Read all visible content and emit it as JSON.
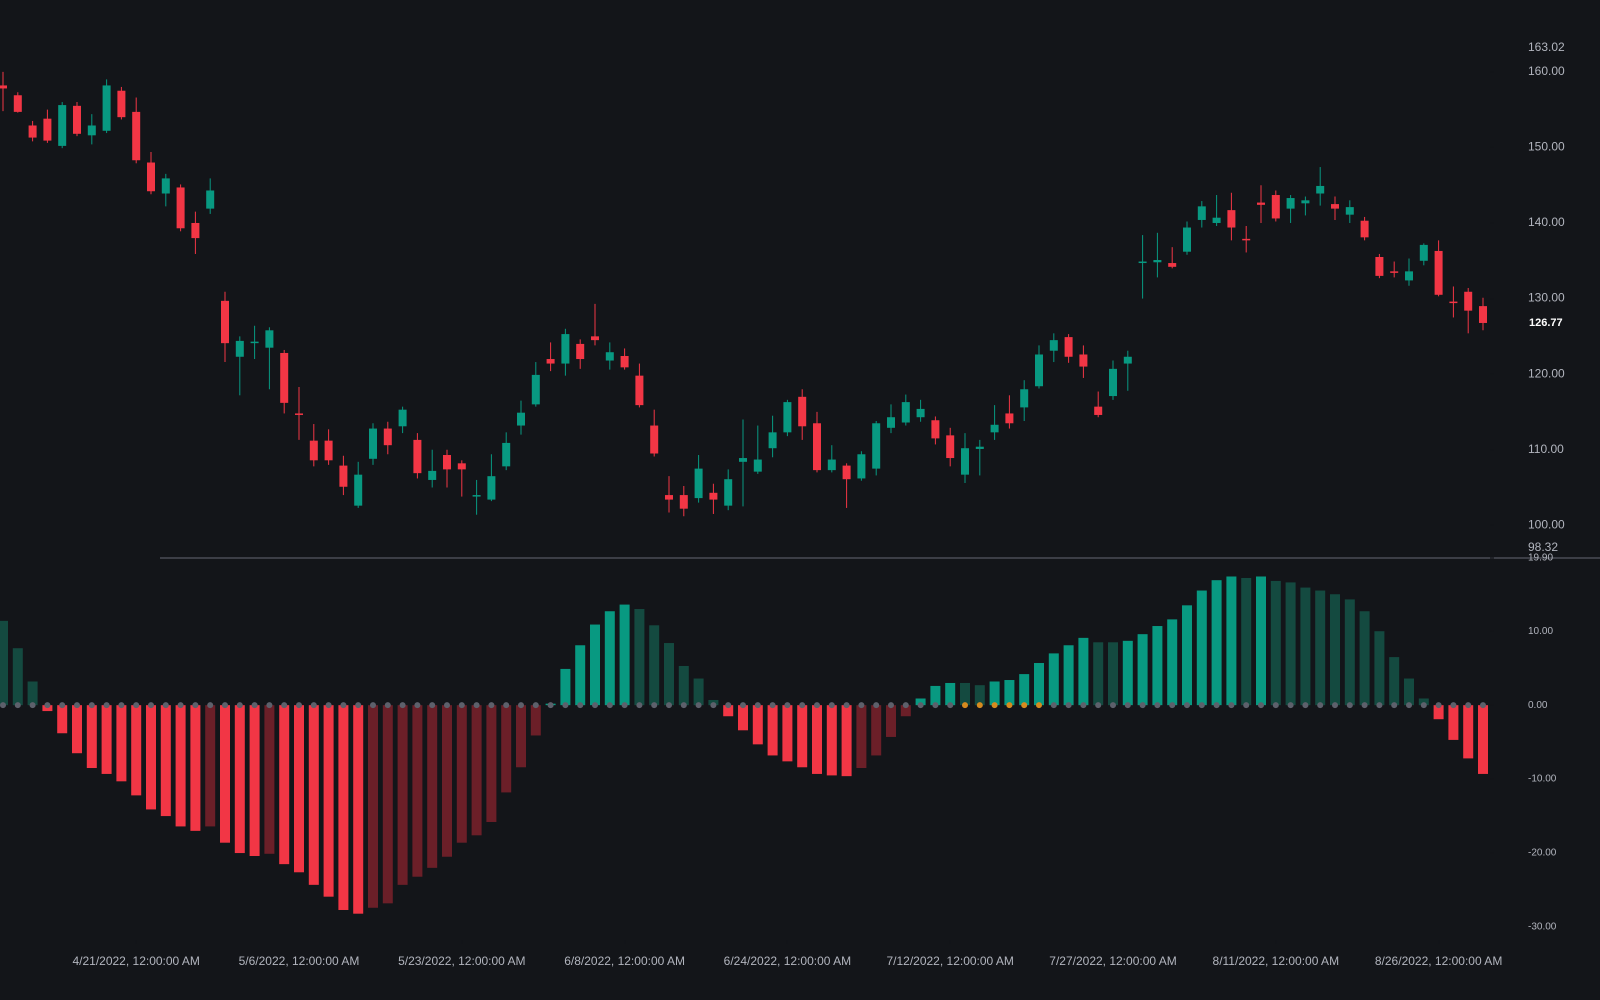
{
  "chart_data": [
    {
      "type": "candlestick",
      "open": [
        158.2,
        156.9,
        152.9,
        153.8,
        150.2,
        155.5,
        151.6,
        152.2,
        157.5,
        154.7,
        148,
        143.9,
        144.7,
        140,
        141.9,
        129.7,
        122.3,
        124.1,
        123.5,
        122.8,
        114.8,
        111.2,
        111.2,
        107.9,
        102.6,
        108.8,
        112.8,
        113.1,
        111.3,
        106,
        109.3,
        108.2,
        103.8,
        103.4,
        107.8,
        113.2,
        116,
        122,
        121.4,
        124,
        125,
        121.8,
        122.4,
        119.8,
        113.2,
        104,
        104,
        103.6,
        104.3,
        102.6,
        108.4,
        107.1,
        110.2,
        112.3,
        117,
        113.5,
        107.3,
        107.9,
        106.2,
        107.5,
        112.9,
        113.6,
        114.3,
        113.9,
        111.9,
        106.7,
        110.1,
        112.3,
        114.8,
        115.6,
        118.4,
        123.1,
        124.9,
        122.6,
        115.7,
        117.1,
        121.4,
        134.7,
        134.8,
        134.7,
        136.2,
        140.4,
        140,
        141.7,
        137.9,
        142.7,
        143.7,
        141.9,
        142.6,
        143.9,
        142.5,
        141.1,
        140.3,
        135.5,
        133.6,
        132.4,
        135,
        136.3,
        129.6,
        130.9,
        129
      ],
      "high": [
        160,
        157.3,
        153.5,
        155,
        156,
        156,
        154.4,
        159,
        158,
        156.6,
        149.4,
        146.5,
        145.1,
        141.5,
        145.9,
        130.9,
        125,
        126.4,
        126.2,
        123.2,
        118.3,
        113.4,
        112.7,
        109.2,
        108.4,
        113.5,
        113.7,
        115.7,
        112.2,
        110,
        110,
        108.6,
        106,
        109.4,
        112.3,
        116.5,
        121.6,
        124.2,
        126,
        124.6,
        129.3,
        124.2,
        123.4,
        121.4,
        115.3,
        106.5,
        105.2,
        109.3,
        105.5,
        107.4,
        114,
        113.2,
        114.5,
        116.6,
        118,
        115,
        110.6,
        108.2,
        109.8,
        113.8,
        116,
        117.3,
        116.6,
        114.4,
        112.9,
        112.2,
        111.3,
        115.9,
        117.2,
        119.2,
        123.8,
        125.4,
        125.3,
        123.8,
        117.7,
        121.8,
        123.1,
        138.4,
        138.7,
        136.8,
        140.2,
        142.9,
        143.7,
        144,
        139.6,
        145,
        144.3,
        143.7,
        143.5,
        147.4,
        143.5,
        143,
        140.8,
        135.9,
        134.9,
        135.3,
        137.3,
        137.7,
        131.6,
        131.4,
        130.1
      ],
      "low": [
        154.8,
        154.6,
        150.8,
        150.6,
        149.9,
        151.5,
        150.4,
        151.9,
        153.7,
        147.9,
        143.8,
        142.2,
        138.9,
        135.9,
        141.2,
        121.6,
        117.2,
        122,
        118,
        114.8,
        111.3,
        107.8,
        108,
        104,
        102.3,
        108,
        109.4,
        112.2,
        106.2,
        105,
        105,
        103.8,
        101.4,
        103.2,
        107.3,
        112,
        115.7,
        120.4,
        119.8,
        120.7,
        123.8,
        120.6,
        120.6,
        115.6,
        109.1,
        101.7,
        101.2,
        103,
        101.5,
        102,
        102.5,
        106.8,
        109,
        111.8,
        111.3,
        107,
        107,
        102.3,
        105.9,
        106.6,
        112.2,
        113.2,
        113.7,
        110.7,
        107.8,
        105.6,
        106.6,
        111.3,
        112.8,
        113.8,
        118.1,
        121.6,
        121.5,
        119.5,
        114.3,
        116.6,
        117.8,
        130,
        132.8,
        134,
        135.8,
        139.4,
        139.6,
        137.7,
        136.1,
        140,
        140.2,
        140,
        141,
        142.3,
        140.4,
        140,
        137.7,
        132.7,
        132.8,
        131.7,
        134.4,
        130.3,
        127.5,
        125.4,
        125.8
      ],
      "close": [
        157.8,
        154.7,
        151.3,
        150.9,
        155.6,
        151.8,
        152.9,
        158.2,
        154,
        148.3,
        144.2,
        145.9,
        139.3,
        138,
        144.3,
        124.1,
        124.4,
        124.3,
        125.8,
        116.2,
        114.6,
        108.6,
        108.6,
        105.1,
        106.7,
        112.8,
        110.6,
        115.3,
        106.9,
        107.2,
        107.4,
        107.4,
        104,
        106.5,
        110.9,
        114.9,
        119.9,
        121.4,
        125.3,
        122,
        124.5,
        122.9,
        120.9,
        115.9,
        109.5,
        103.4,
        102.2,
        107.5,
        103.4,
        106.1,
        108.9,
        108.7,
        112.3,
        116.3,
        113.1,
        107.3,
        108.7,
        106.1,
        109.4,
        113.5,
        114.3,
        116.3,
        115.4,
        111.5,
        108.9,
        110.2,
        110.4,
        113.3,
        113.5,
        118,
        122.6,
        124.5,
        122.3,
        121,
        114.6,
        120.7,
        122.3,
        134.9,
        135.1,
        134.2,
        139.4,
        142.2,
        140.7,
        139.4,
        137.7,
        142.4,
        140.6,
        143.3,
        143,
        144.9,
        141.9,
        142.1,
        138.1,
        133,
        133.4,
        133.6,
        137.1,
        130.5,
        129.4,
        128.4,
        126.77
      ],
      "colors": {
        "up": "#089981",
        "down": "#f23645"
      },
      "ylim": [
        98.32,
        163.02
      ],
      "yticks": [
        {
          "value": 100,
          "label": "100.00"
        },
        {
          "value": 110,
          "label": "110.00"
        },
        {
          "value": 120,
          "label": "120.00"
        },
        {
          "value": 130,
          "label": "130.00"
        },
        {
          "value": 140,
          "label": "140.00"
        },
        {
          "value": 150,
          "label": "150.00"
        },
        {
          "value": 160,
          "label": "160.00"
        }
      ]
    },
    {
      "type": "bar",
      "values": [
        11.4,
        7.7,
        3.2,
        -0.8,
        -3.8,
        -6.5,
        -8.5,
        -9.3,
        -10.3,
        -12.2,
        -14.1,
        -15,
        -16.4,
        -17,
        -16.4,
        -18.6,
        -20,
        -20.4,
        -20.1,
        -21.5,
        -22.6,
        -24.3,
        -25.9,
        -27.7,
        -28.2,
        -27.4,
        -26.8,
        -24.3,
        -23.2,
        -22,
        -20.5,
        -18.6,
        -17.6,
        -15.8,
        -11.8,
        -8.4,
        -4.1,
        0.2,
        4.9,
        8.1,
        10.9,
        12.7,
        13.6,
        13,
        10.8,
        8.4,
        5.3,
        3.6,
        0.7,
        -1.5,
        -3.4,
        -5.3,
        -6.8,
        -7.6,
        -8.4,
        -9.3,
        -9.5,
        -9.6,
        -8.5,
        -6.8,
        -4.3,
        -1.5,
        0.9,
        2.6,
        3,
        3,
        2.7,
        3.2,
        3.4,
        4.2,
        5.7,
        7,
        8.1,
        9.1,
        8.5,
        8.5,
        8.7,
        9.6,
        10.7,
        11.6,
        13.5,
        15.5,
        16.9,
        17.4,
        17.2,
        17.4,
        16.8,
        16.6,
        15.9,
        15.5,
        15,
        14.3,
        12.7,
        10,
        6.5,
        3.6,
        0.9,
        -1.9,
        -4.7,
        -7.2,
        -9.3
      ],
      "squeeze": [
        false,
        false,
        false,
        false,
        false,
        false,
        false,
        false,
        false,
        false,
        false,
        false,
        false,
        false,
        false,
        false,
        false,
        false,
        false,
        false,
        false,
        false,
        false,
        false,
        false,
        false,
        false,
        false,
        false,
        false,
        false,
        false,
        false,
        false,
        false,
        false,
        false,
        false,
        false,
        false,
        false,
        false,
        false,
        false,
        false,
        false,
        false,
        false,
        false,
        false,
        false,
        false,
        false,
        false,
        false,
        false,
        false,
        false,
        false,
        false,
        false,
        false,
        false,
        false,
        false,
        true,
        true,
        true,
        true,
        true,
        true,
        false,
        false,
        false,
        false,
        false,
        false,
        false,
        false,
        false,
        false,
        false,
        false,
        false,
        false,
        false,
        false,
        false,
        false,
        false,
        false,
        false,
        false,
        false,
        false,
        false,
        false,
        false,
        false,
        false,
        false
      ],
      "colors": {
        "up_rising": "#089981",
        "up_falling": "#144a40",
        "down_falling": "#f23645",
        "down_rising": "#6b1f28"
      },
      "dot_colors": {
        "on": "#d68a1f",
        "off": "#5d606b"
      },
      "ylim": [
        -30,
        19.9
      ],
      "yticks": [
        {
          "value": 19.9,
          "label": "19.90"
        },
        {
          "value": 10,
          "label": "10.00"
        },
        {
          "value": 0,
          "label": "0.00"
        },
        {
          "value": -10,
          "label": "-10.00"
        },
        {
          "value": -20,
          "label": "-20.00"
        },
        {
          "value": -30,
          "label": "-30.00"
        }
      ],
      "xlim": [
        0,
        100
      ],
      "xticks": [
        {
          "value": 9,
          "label": "4/21/2022, 12:00:00 AM"
        },
        {
          "value": 20,
          "label": "5/6/2022, 12:00:00 AM"
        },
        {
          "value": 31,
          "label": "5/23/2022, 12:00:00 AM"
        },
        {
          "value": 42,
          "label": "6/8/2022, 12:00:00 AM"
        },
        {
          "value": 53,
          "label": "6/24/2022, 12:00:00 AM"
        },
        {
          "value": 64,
          "label": "7/12/2022, 12:00:00 AM"
        },
        {
          "value": 75,
          "label": "7/27/2022, 12:00:00 AM"
        },
        {
          "value": 86,
          "label": "8/11/2022, 12:00:00 AM"
        },
        {
          "value": 97,
          "label": "8/26/2022, 12:00:00 AM"
        }
      ]
    }
  ]
}
